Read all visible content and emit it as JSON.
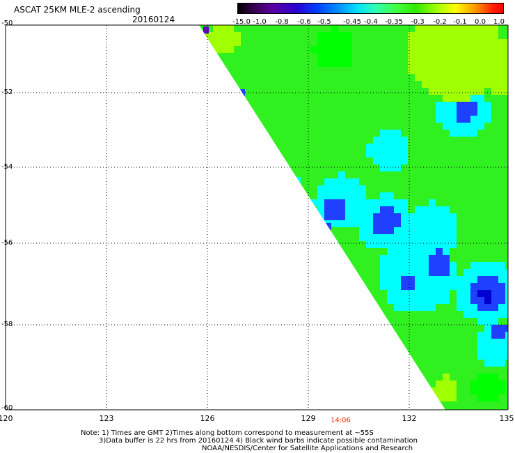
{
  "header": {
    "title": "ASCAT 25KM MLE-2 ascending",
    "date": "20160124"
  },
  "colorbar": {
    "labels": [
      "-15.0",
      "-1.0",
      "-0.8",
      "-0.6",
      "-0.5",
      "-0.45",
      "-0.4",
      "-0.35",
      "-0.3",
      "-0.2",
      "-0.1",
      "0.0",
      "1.0"
    ]
  },
  "axes": {
    "lat_labels": [
      "-50",
      "-52",
      "-54",
      "-56",
      "-58",
      "-60"
    ],
    "lon_labels": [
      "120",
      "123",
      "126",
      "129",
      "132",
      "135"
    ]
  },
  "time_label": "14:06",
  "notes": {
    "line1": "Note: 1) Times are GMT 2)Times along bottom correspond to measurement at ~55S",
    "line2": "3)Data buffer is 22 hrs from 20160124 4) Black wind barbs indicate possible contamination",
    "line3": "NOAA/NESDIS/Center for Satellite Applications and Research"
  },
  "colors": {
    "green": "#30f020",
    "bright_green": "#00ff00",
    "lime": "#a0ff00",
    "cyan": "#00ffff",
    "light_blue": "#00c0ff",
    "blue": "#2040ff",
    "dark_blue": "#0000d0",
    "purple": "#6000c0"
  }
}
